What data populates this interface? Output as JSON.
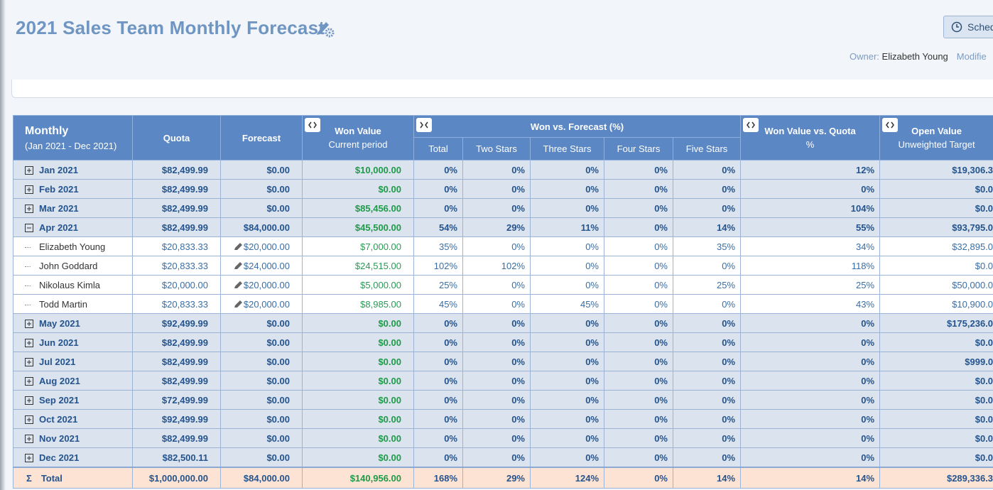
{
  "header": {
    "title": "2021 Sales Team Monthly Forecast",
    "schedule_button": "Sched",
    "owner_label": "Owner:",
    "owner": "Elizabeth Young",
    "modified_label": "Modifie"
  },
  "table": {
    "header": {
      "period": "Monthly",
      "period_range": "(Jan 2021 - Dec 2021)",
      "quota": "Quota",
      "forecast": "Forecast",
      "won_value": "Won Value",
      "won_value_sub": "Current period",
      "won_vs_forecast": "Won vs. Forecast (%)",
      "subcolumns": [
        "Total",
        "Two Stars",
        "Three Stars",
        "Four Stars",
        "Five Stars"
      ],
      "won_vs_quota": "Won Value vs. Quota",
      "won_vs_quota_sub": "%",
      "open_value": "Open Value",
      "open_value_sub": "Unweighted Target"
    },
    "rows": [
      {
        "kind": "month",
        "expanded": false,
        "cells": [
          "Jan 2021",
          "$82,499.99",
          "$0.00",
          "$10,000.00",
          "0%",
          "0%",
          "0%",
          "0%",
          "0%",
          "12%",
          "$19,306.3"
        ]
      },
      {
        "kind": "month",
        "expanded": false,
        "cells": [
          "Feb 2021",
          "$82,499.99",
          "$0.00",
          "$0.00",
          "0%",
          "0%",
          "0%",
          "0%",
          "0%",
          "0%",
          "$0.0"
        ]
      },
      {
        "kind": "month",
        "expanded": false,
        "cells": [
          "Mar 2021",
          "$82,499.99",
          "$0.00",
          "$85,456.00",
          "0%",
          "0%",
          "0%",
          "0%",
          "0%",
          "104%",
          "$0.0"
        ]
      },
      {
        "kind": "month",
        "expanded": true,
        "cells": [
          "Apr 2021",
          "$82,499.99",
          "$84,000.00",
          "$45,500.00",
          "54%",
          "29%",
          "11%",
          "0%",
          "14%",
          "55%",
          "$93,795.0"
        ]
      },
      {
        "kind": "person",
        "cells": [
          "Elizabeth Young",
          "$20,833.33",
          "$20,000.00",
          "$7,000.00",
          "35%",
          "0%",
          "0%",
          "0%",
          "35%",
          "34%",
          "$32,895.0"
        ]
      },
      {
        "kind": "person",
        "cells": [
          "John Goddard",
          "$20,833.33",
          "$24,000.00",
          "$24,515.00",
          "102%",
          "102%",
          "0%",
          "0%",
          "0%",
          "118%",
          "$0.0"
        ]
      },
      {
        "kind": "person",
        "cells": [
          "Nikolaus Kimla",
          "$20,000.00",
          "$20,000.00",
          "$5,000.00",
          "25%",
          "0%",
          "0%",
          "0%",
          "25%",
          "25%",
          "$50,000.0"
        ]
      },
      {
        "kind": "person",
        "cells": [
          "Todd Martin",
          "$20,833.33",
          "$20,000.00",
          "$8,985.00",
          "45%",
          "0%",
          "45%",
          "0%",
          "0%",
          "43%",
          "$10,900.0"
        ]
      },
      {
        "kind": "month",
        "expanded": false,
        "cells": [
          "May 2021",
          "$92,499.99",
          "$0.00",
          "$0.00",
          "0%",
          "0%",
          "0%",
          "0%",
          "0%",
          "0%",
          "$175,236.0"
        ]
      },
      {
        "kind": "month",
        "expanded": false,
        "cells": [
          "Jun 2021",
          "$82,499.99",
          "$0.00",
          "$0.00",
          "0%",
          "0%",
          "0%",
          "0%",
          "0%",
          "0%",
          "$0.0"
        ]
      },
      {
        "kind": "month",
        "expanded": false,
        "cells": [
          "Jul 2021",
          "$82,499.99",
          "$0.00",
          "$0.00",
          "0%",
          "0%",
          "0%",
          "0%",
          "0%",
          "0%",
          "$999.0"
        ]
      },
      {
        "kind": "month",
        "expanded": false,
        "cells": [
          "Aug 2021",
          "$82,499.99",
          "$0.00",
          "$0.00",
          "0%",
          "0%",
          "0%",
          "0%",
          "0%",
          "0%",
          "$0.0"
        ]
      },
      {
        "kind": "month",
        "expanded": false,
        "cells": [
          "Sep 2021",
          "$72,499.99",
          "$0.00",
          "$0.00",
          "0%",
          "0%",
          "0%",
          "0%",
          "0%",
          "0%",
          "$0.0"
        ]
      },
      {
        "kind": "month",
        "expanded": false,
        "cells": [
          "Oct 2021",
          "$92,499.99",
          "$0.00",
          "$0.00",
          "0%",
          "0%",
          "0%",
          "0%",
          "0%",
          "0%",
          "$0.0"
        ]
      },
      {
        "kind": "month",
        "expanded": false,
        "cells": [
          "Nov 2021",
          "$82,499.99",
          "$0.00",
          "$0.00",
          "0%",
          "0%",
          "0%",
          "0%",
          "0%",
          "0%",
          "$0.0"
        ]
      },
      {
        "kind": "month",
        "expanded": false,
        "cells": [
          "Dec 2021",
          "$82,500.11",
          "$0.00",
          "$0.00",
          "0%",
          "0%",
          "0%",
          "0%",
          "0%",
          "0%",
          "$0.0"
        ]
      },
      {
        "kind": "total",
        "symbol": "Σ",
        "cells": [
          "Total",
          "$1,000,000.00",
          "$84,000.00",
          "$140,956.00",
          "168%",
          "29%",
          "124%",
          "0%",
          "14%",
          "14%",
          "$289,336.3"
        ]
      }
    ]
  }
}
